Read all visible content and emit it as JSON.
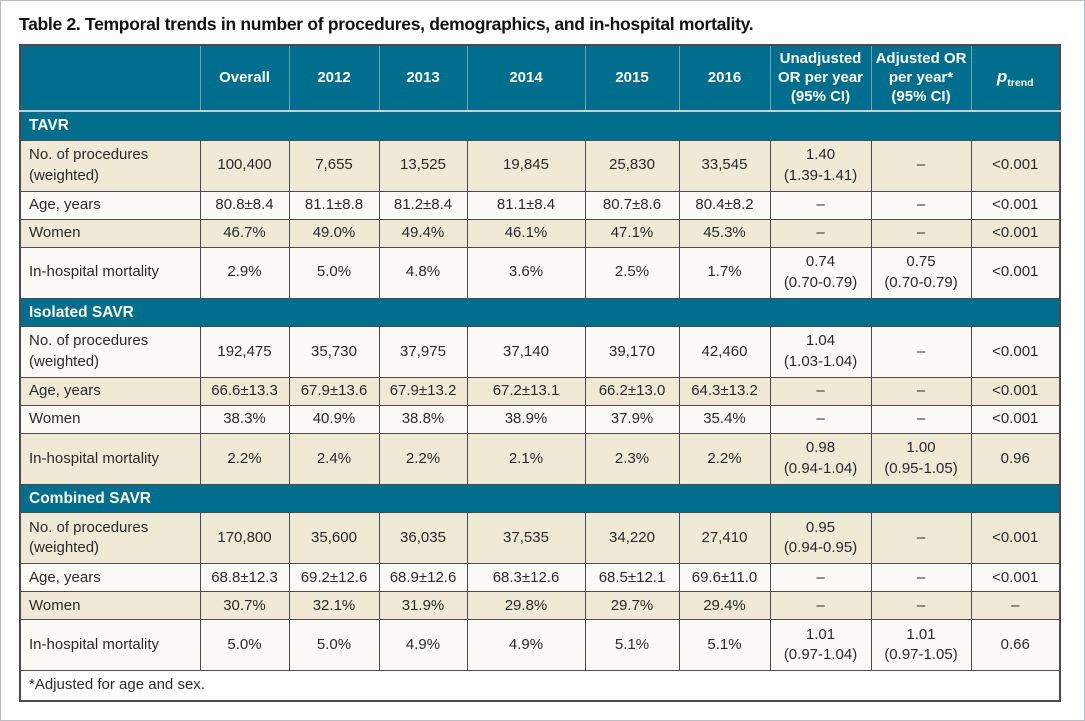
{
  "title": "Table 2. Temporal trends in number of procedures, demographics, and in-hospital mortality.",
  "footnote": "*Adjusted for age and sex.",
  "colors": {
    "header_teal": "#006e8c",
    "row_cream": "#efe9d6",
    "row_white": "#fbfaf7",
    "grid_dark": "#4b4b4d",
    "header_divider_blue": "#6fa3b5",
    "text": "#2a2a28"
  },
  "chart_data": {
    "type": "table",
    "title": "Table 2. Temporal trends in number of procedures, demographics, and in-hospital mortality.",
    "columns": [
      "",
      "Overall",
      "2012",
      "2013",
      "2014",
      "2015",
      "2016",
      "Unadjusted OR per year (95% CI)",
      "Adjusted OR per year* (95% CI)",
      "p trend"
    ]
  },
  "table": {
    "columns": [
      {
        "label": ""
      },
      {
        "label": "Overall"
      },
      {
        "label": "2012"
      },
      {
        "label": "2013"
      },
      {
        "label": "2014"
      },
      {
        "label": "2015"
      },
      {
        "label": "2016"
      },
      {
        "label": "Unadjusted OR per year (95% CI)"
      },
      {
        "label": "Adjusted OR per year* (95% CI)"
      },
      {
        "italic_label": "p",
        "subscript": "trend"
      }
    ],
    "sections": [
      {
        "name": "TAVR",
        "rows": [
          {
            "label": "No. of procedures (weighted)",
            "values": [
              "100,400",
              "7,655",
              "13,525",
              "19,845",
              "25,830",
              "33,545",
              "1.40\n(1.39-1.41)",
              "–",
              "<0.001"
            ]
          },
          {
            "label": "Age, years",
            "values": [
              "80.8±8.4",
              "81.1±8.8",
              "81.2±8.4",
              "81.1±8.4",
              "80.7±8.6",
              "80.4±8.2",
              "–",
              "–",
              "<0.001"
            ]
          },
          {
            "label": "Women",
            "values": [
              "46.7%",
              "49.0%",
              "49.4%",
              "46.1%",
              "47.1%",
              "45.3%",
              "–",
              "–",
              "<0.001"
            ]
          },
          {
            "label": "In-hospital mortality",
            "values": [
              "2.9%",
              "5.0%",
              "4.8%",
              "3.6%",
              "2.5%",
              "1.7%",
              "0.74\n(0.70-0.79)",
              "0.75\n(0.70-0.79)",
              "<0.001"
            ]
          }
        ]
      },
      {
        "name": "Isolated SAVR",
        "rows": [
          {
            "label": "No. of procedures (weighted)",
            "values": [
              "192,475",
              "35,730",
              "37,975",
              "37,140",
              "39,170",
              "42,460",
              "1.04\n(1.03-1.04)",
              "–",
              "<0.001"
            ]
          },
          {
            "label": "Age, years",
            "values": [
              "66.6±13.3",
              "67.9±13.6",
              "67.9±13.2",
              "67.2±13.1",
              "66.2±13.0",
              "64.3±13.2",
              "–",
              "–",
              "<0.001"
            ]
          },
          {
            "label": "Women",
            "values": [
              "38.3%",
              "40.9%",
              "38.8%",
              "38.9%",
              "37.9%",
              "35.4%",
              "–",
              "–",
              "<0.001"
            ]
          },
          {
            "label": "In-hospital mortality",
            "values": [
              "2.2%",
              "2.4%",
              "2.2%",
              "2.1%",
              "2.3%",
              "2.2%",
              "0.98\n(0.94-1.04)",
              "1.00\n(0.95-1.05)",
              "0.96"
            ]
          }
        ]
      },
      {
        "name": "Combined SAVR",
        "rows": [
          {
            "label": "No. of procedures (weighted)",
            "values": [
              "170,800",
              "35,600",
              "36,035",
              "37,535",
              "34,220",
              "27,410",
              "0.95\n(0.94-0.95)",
              "–",
              "<0.001"
            ]
          },
          {
            "label": "Age, years",
            "values": [
              "68.8±12.3",
              "69.2±12.6",
              "68.9±12.6",
              "68.3±12.6",
              "68.5±12.1",
              "69.6±11.0",
              "–",
              "–",
              "<0.001"
            ]
          },
          {
            "label": "Women",
            "values": [
              "30.7%",
              "32.1%",
              "31.9%",
              "29.8%",
              "29.7%",
              "29.4%",
              "–",
              "–",
              "–"
            ]
          },
          {
            "label": "In-hospital mortality",
            "values": [
              "5.0%",
              "5.0%",
              "4.9%",
              "4.9%",
              "5.1%",
              "5.1%",
              "1.01\n(0.97-1.04)",
              "1.01\n(0.97-1.05)",
              "0.66"
            ]
          }
        ]
      }
    ]
  }
}
